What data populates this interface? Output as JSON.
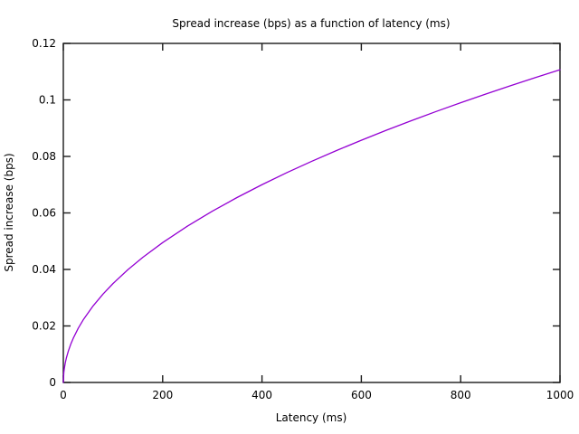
{
  "figure": {
    "background": "#ffffff",
    "border_color": "#1a1a1a",
    "text_color": "#000000"
  },
  "chart_data": {
    "type": "line",
    "title": "Spread increase (bps) as a function of latency (ms)",
    "xlabel": "Latency (ms)",
    "ylabel": "Spread increase (bps)",
    "xlim": [
      0,
      1000
    ],
    "ylim": [
      0,
      0.12
    ],
    "x_ticks": [
      0,
      200,
      400,
      600,
      800,
      1000
    ],
    "x_tick_labels": [
      "0",
      "200",
      "400",
      "600",
      "800",
      "1000"
    ],
    "y_ticks": [
      0,
      0.02,
      0.04,
      0.06,
      0.08,
      0.1,
      0.12
    ],
    "y_tick_labels": [
      "0",
      "0.02",
      "0.04",
      "0.06",
      "0.08",
      "0.1",
      "0.12"
    ],
    "grid": false,
    "legend": "none",
    "tick_style": "inward-mirrored",
    "series": [
      {
        "name": "spread_increase",
        "color": "#9400d3",
        "formula_note": "y = 0.0035 * sqrt(latency_ms)",
        "points": [
          [
            0,
            0
          ],
          [
            1,
            0.0035
          ],
          [
            2,
            0.00495
          ],
          [
            4,
            0.007
          ],
          [
            6,
            0.00857
          ],
          [
            10,
            0.01107
          ],
          [
            15,
            0.01355
          ],
          [
            20,
            0.01565
          ],
          [
            30,
            0.01917
          ],
          [
            40,
            0.02214
          ],
          [
            60,
            0.02711
          ],
          [
            80,
            0.0313
          ],
          [
            100,
            0.035
          ],
          [
            130,
            0.03991
          ],
          [
            160,
            0.04427
          ],
          [
            200,
            0.0495
          ],
          [
            250,
            0.05534
          ],
          [
            300,
            0.06062
          ],
          [
            350,
            0.06548
          ],
          [
            400,
            0.07
          ],
          [
            450,
            0.07425
          ],
          [
            500,
            0.07826
          ],
          [
            550,
            0.08208
          ],
          [
            600,
            0.08573
          ],
          [
            650,
            0.08923
          ],
          [
            700,
            0.0926
          ],
          [
            750,
            0.09586
          ],
          [
            800,
            0.09899
          ],
          [
            850,
            0.10204
          ],
          [
            900,
            0.105
          ],
          [
            950,
            0.10787
          ],
          [
            1000,
            0.11068
          ]
        ]
      }
    ]
  }
}
